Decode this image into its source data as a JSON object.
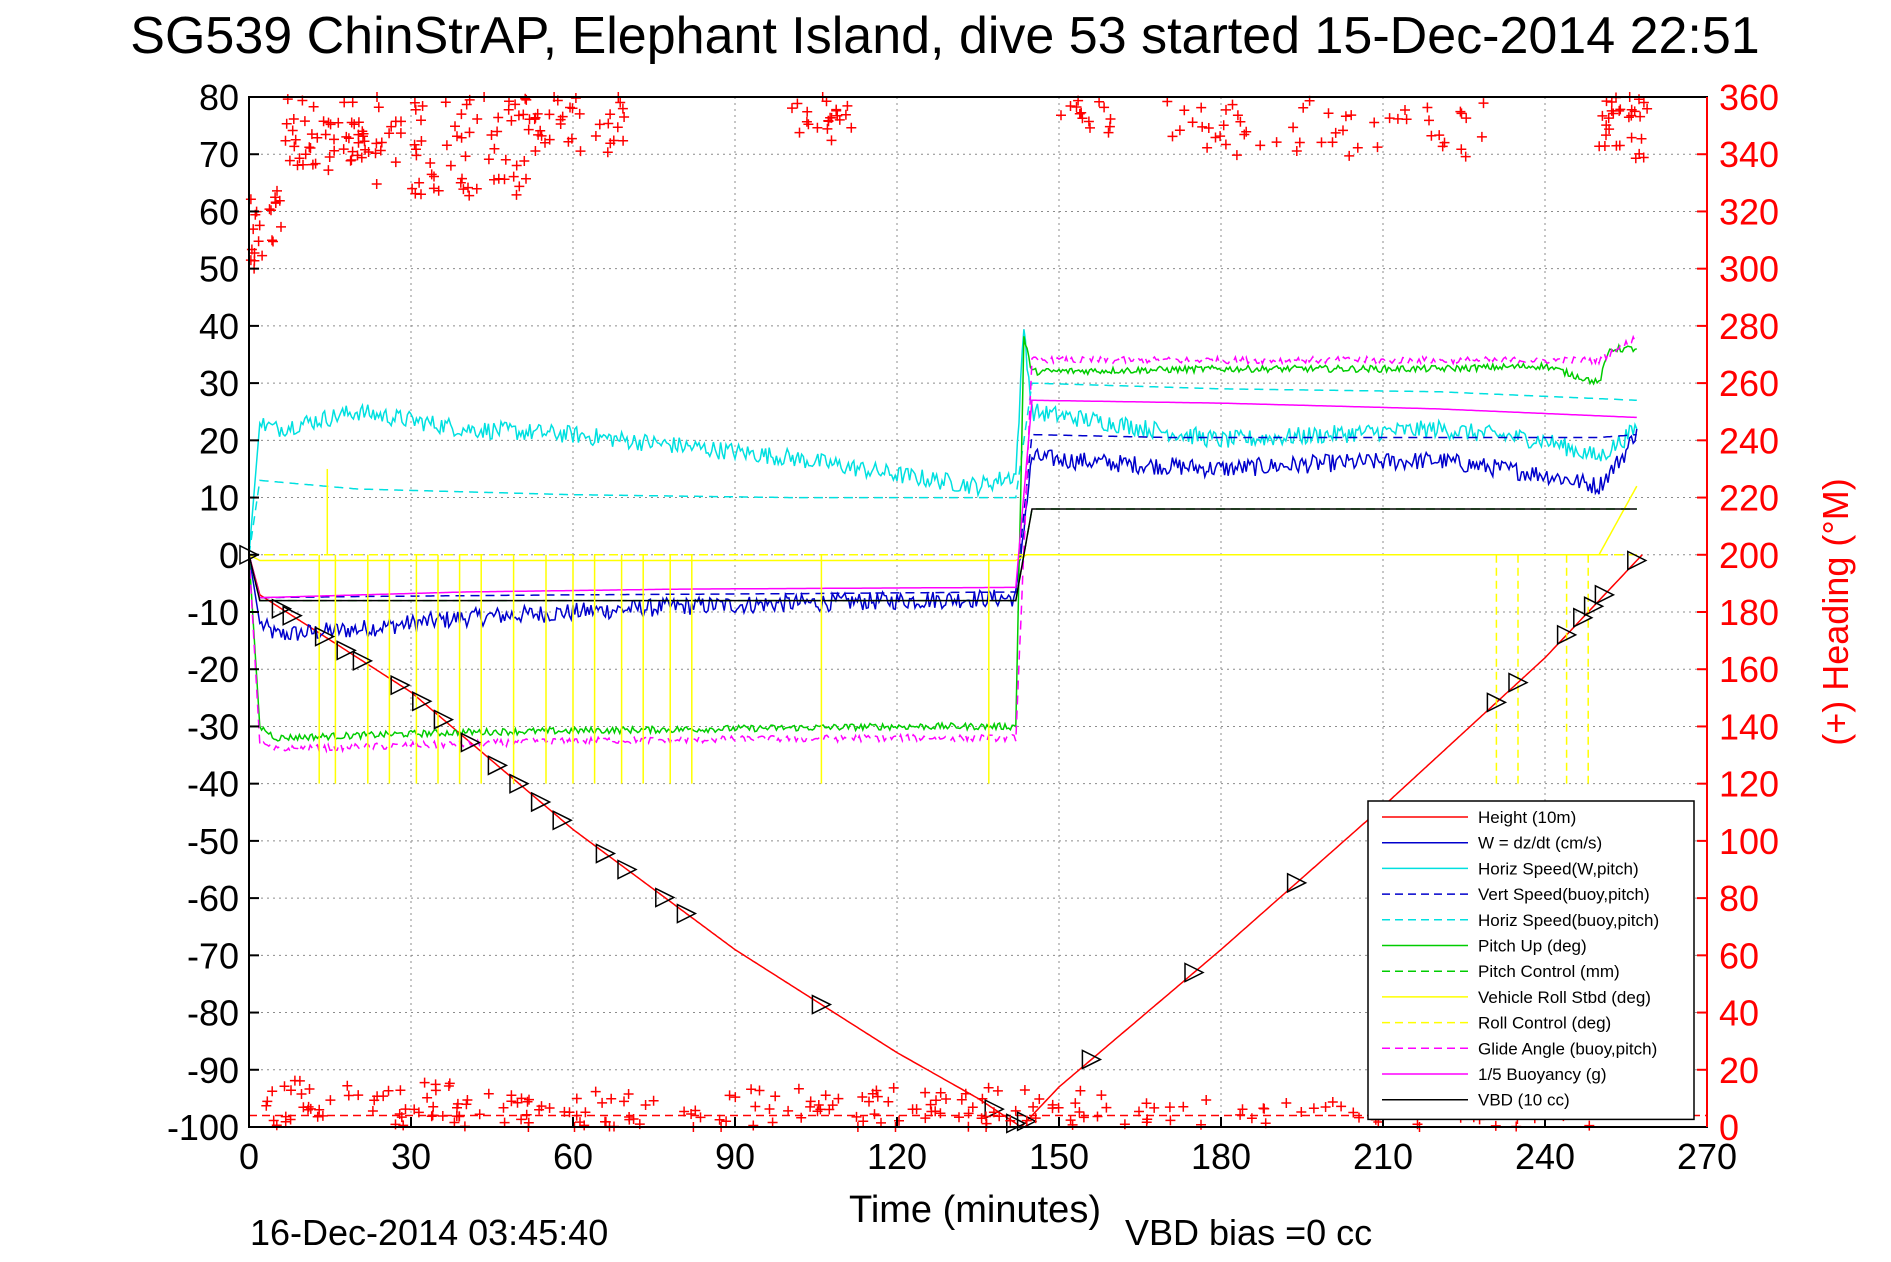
{
  "chart_data": {
    "type": "line",
    "title": "SG539 ChinStrAP, Elephant Island, dive 53 started 15-Dec-2014 22:51",
    "xlabel": "Time (minutes)",
    "ylabel_right": "(+) Heading (°M)",
    "footer_left": "16-Dec-2014 03:45:40",
    "footer_right": "VBD bias =0 cc",
    "xlim": [
      0,
      270
    ],
    "ylim": [
      -100,
      80
    ],
    "y2lim": [
      0,
      360
    ],
    "xticks": [
      "0",
      "30",
      "60",
      "90",
      "120",
      "150",
      "180",
      "210",
      "240",
      "270"
    ],
    "yticks": [
      "80",
      "70",
      "60",
      "50",
      "40",
      "30",
      "20",
      "10",
      "0",
      "-10",
      "-20",
      "-30",
      "-40",
      "-50",
      "-60",
      "-70",
      "-80",
      "-90",
      "-100"
    ],
    "y2ticks": [
      "360",
      "340",
      "320",
      "300",
      "280",
      "260",
      "240",
      "220",
      "200",
      "180",
      "160",
      "140",
      "120",
      "100",
      "80",
      "60",
      "40",
      "20",
      "0"
    ],
    "grid": true,
    "legend_position": "bottom-right",
    "colors": {
      "axis": "#000000",
      "grid": "#8c8c8c",
      "heading": "#ff0000",
      "height": "#ff0000",
      "w": "#0000cc",
      "horiz": "#00e0e0",
      "pitch": "#00cc00",
      "roll": "#ffff00",
      "buoy": "#ff00ff",
      "vbd": "#000000"
    },
    "series": [
      {
        "name": "Height (10m)",
        "color": "#ff0000",
        "style": "solid",
        "x": [
          0,
          2,
          30,
          60,
          90,
          120,
          135,
          143,
          150,
          180,
          210,
          240,
          258
        ],
        "y": [
          0,
          -7,
          -24,
          -48,
          -69,
          -87,
          -95,
          -100,
          -93,
          -69,
          -44,
          -18,
          0
        ]
      },
      {
        "name": "W = dz/dt (cm/s)",
        "color": "#0000cc",
        "style": "solid",
        "x": [
          0,
          2,
          5,
          20,
          40,
          60,
          80,
          100,
          120,
          142,
          143.5,
          145,
          160,
          180,
          200,
          220,
          240,
          250,
          255,
          257
        ],
        "y": [
          0,
          -12,
          -14,
          -13,
          -11,
          -10,
          -9,
          -8.5,
          -8,
          -7.5,
          5,
          17,
          16,
          15,
          16,
          16.5,
          14,
          12,
          18,
          22
        ]
      },
      {
        "name": "Horiz Speed(W,pitch)",
        "color": "#00e0e0",
        "style": "solid",
        "x": [
          0,
          2,
          5,
          20,
          40,
          60,
          80,
          100,
          120,
          135,
          142,
          143.5,
          145,
          160,
          180,
          200,
          220,
          240,
          250,
          257
        ],
        "y": [
          0,
          23,
          22,
          25,
          22,
          21,
          19,
          17,
          14,
          12,
          14,
          40,
          25,
          23,
          20,
          21,
          22,
          20,
          17,
          22
        ]
      },
      {
        "name": "Vert Speed(buoy,pitch)",
        "color": "#0000cc",
        "style": "dashed",
        "x": [
          0,
          2,
          20,
          60,
          100,
          142,
          145,
          170,
          210,
          250,
          257
        ],
        "y": [
          0,
          -7.5,
          -7.3,
          -7,
          -6.8,
          -6.5,
          21,
          20.5,
          20.5,
          20.5,
          21
        ]
      },
      {
        "name": "Horiz Speed(buoy,pitch)",
        "color": "#00e0e0",
        "style": "dashed",
        "x": [
          0,
          2,
          20,
          60,
          100,
          142,
          145,
          180,
          220,
          257
        ],
        "y": [
          0,
          13,
          11.5,
          10.5,
          10,
          10,
          30,
          29,
          28.5,
          27
        ]
      },
      {
        "name": "Pitch Up (deg)",
        "color": "#00cc00",
        "style": "solid",
        "x": [
          0,
          2,
          5,
          40,
          80,
          120,
          142,
          143.5,
          145,
          180,
          220,
          240,
          250,
          252,
          257
        ],
        "y": [
          0,
          -30,
          -32,
          -31,
          -30.5,
          -30,
          -30,
          38,
          32,
          32.5,
          32.5,
          33,
          30,
          36,
          36
        ]
      },
      {
        "name": "Pitch Control (mm)",
        "color": "#00cc00",
        "style": "dashed",
        "x": [
          0,
          2,
          140,
          142,
          145,
          257
        ],
        "y": [
          0,
          -8,
          -8,
          -8,
          8,
          8
        ]
      },
      {
        "name": "Vehicle Roll Stbd (deg)",
        "color": "#ffff00",
        "style": "solid",
        "x": [
          0,
          2,
          30,
          60,
          100,
          142,
          144,
          180,
          220,
          250,
          257
        ],
        "y": [
          0,
          -1,
          -1,
          -1,
          -1,
          -1,
          0,
          0,
          0,
          0,
          12
        ]
      },
      {
        "name": "Roll Control (deg)",
        "color": "#ffff00",
        "style": "dashed",
        "x": [
          0,
          257
        ],
        "y": [
          0,
          0
        ]
      },
      {
        "name": "Glide Angle (buoy,pitch)",
        "color": "#ff00ff",
        "style": "dashed",
        "x": [
          0,
          2,
          5,
          60,
          120,
          142,
          145,
          180,
          220,
          250,
          257
        ],
        "y": [
          0,
          -33,
          -34,
          -32.5,
          -32,
          -32,
          34,
          34,
          34,
          34,
          38
        ]
      },
      {
        "name": "1/5 Buoyancy (g)",
        "color": "#ff00ff",
        "style": "solid",
        "x": [
          0,
          2,
          40,
          80,
          120,
          142,
          145,
          180,
          220,
          257
        ],
        "y": [
          0,
          -7.5,
          -6.5,
          -6,
          -5.8,
          -5.7,
          27,
          26.5,
          25.5,
          24
        ]
      },
      {
        "name": "VBD (10 cc)",
        "color": "#000000",
        "style": "solid",
        "x": [
          0,
          2,
          142,
          145,
          257
        ],
        "y": [
          0,
          -8,
          -8,
          8,
          8
        ]
      }
    ],
    "height_markers_x": [
      0,
      6,
      8,
      14,
      18,
      21,
      28,
      32,
      36,
      41,
      46,
      50,
      54,
      58,
      66,
      70,
      77,
      81,
      106,
      138,
      142,
      144,
      156,
      175,
      194,
      231,
      235,
      244,
      247,
      249,
      251,
      257
    ],
    "heading_clusters": [
      {
        "x": [
          0,
          6
        ],
        "deg": [
          300,
          330
        ],
        "jitter": 30,
        "n": 22
      },
      {
        "x": [
          6,
          22
        ],
        "deg": [
          335,
          360
        ],
        "jitter": 14,
        "n": 50
      },
      {
        "x": [
          22,
          52
        ],
        "deg": [
          325,
          360
        ],
        "jitter": 22,
        "n": 75
      },
      {
        "x": [
          52,
          70
        ],
        "deg": [
          340,
          360
        ],
        "jitter": 12,
        "n": 35
      },
      {
        "x": [
          100,
          112
        ],
        "deg": [
          345,
          360
        ],
        "jitter": 10,
        "n": 22
      },
      {
        "x": [
          150,
          160
        ],
        "deg": [
          348,
          360
        ],
        "jitter": 8,
        "n": 14
      },
      {
        "x": [
          170,
          230
        ],
        "deg": [
          340,
          360
        ],
        "jitter": 14,
        "n": 55
      },
      {
        "x": [
          250,
          259
        ],
        "deg": [
          340,
          360
        ],
        "jitter": 14,
        "n": 30
      },
      {
        "x": [
          3,
          40
        ],
        "deg": [
          0,
          16
        ],
        "jitter": 12,
        "n": 55
      },
      {
        "x": [
          40,
          100
        ],
        "deg": [
          0,
          12
        ],
        "jitter": 9,
        "n": 60
      },
      {
        "x": [
          100,
          160
        ],
        "deg": [
          0,
          14
        ],
        "jitter": 9,
        "n": 70
      },
      {
        "x": [
          160,
          257
        ],
        "deg": [
          0,
          10
        ],
        "jitter": 7,
        "n": 60
      }
    ],
    "heading_baseline_deg": 4,
    "legend": [
      {
        "label": "Height (10m)",
        "color": "#ff0000",
        "style": "solid"
      },
      {
        "label": "W = dz/dt (cm/s)",
        "color": "#0000cc",
        "style": "solid"
      },
      {
        "label": "Horiz Speed(W,pitch)",
        "color": "#00e0e0",
        "style": "solid"
      },
      {
        "label": "Vert Speed(buoy,pitch)",
        "color": "#0000cc",
        "style": "dashed"
      },
      {
        "label": "Horiz Speed(buoy,pitch)",
        "color": "#00e0e0",
        "style": "dashed"
      },
      {
        "label": "Pitch Up (deg)",
        "color": "#00cc00",
        "style": "solid"
      },
      {
        "label": "Pitch Control (mm)",
        "color": "#00cc00",
        "style": "dashed"
      },
      {
        "label": "Vehicle Roll Stbd (deg)",
        "color": "#ffff00",
        "style": "solid"
      },
      {
        "label": "Roll Control (deg)",
        "color": "#ffff00",
        "style": "dashed"
      },
      {
        "label": "Glide Angle (buoy,pitch)",
        "color": "#ff00ff",
        "style": "dashed"
      },
      {
        "label": "1/5 Buoyancy (g)",
        "color": "#ff00ff",
        "style": "solid"
      },
      {
        "label": "VBD (10 cc)",
        "color": "#000000",
        "style": "solid"
      }
    ]
  }
}
